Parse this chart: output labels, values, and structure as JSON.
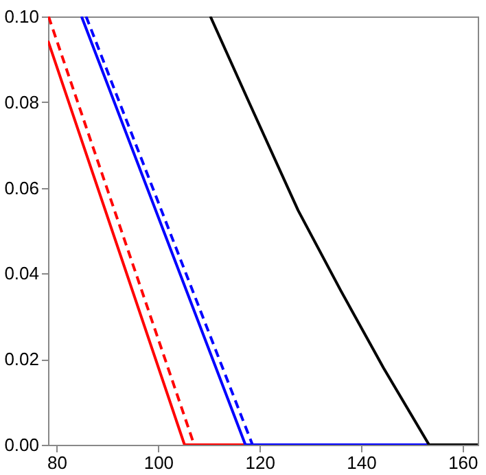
{
  "chart_data": {
    "type": "line",
    "xlim": [
      78.3,
      163
    ],
    "ylim": [
      0,
      0.1
    ],
    "xticks": [
      80,
      100,
      120,
      140,
      160
    ],
    "yticks": [
      {
        "value": 0,
        "label": "0.00"
      },
      {
        "value": 0.02,
        "label": "0.02"
      },
      {
        "value": 0.04,
        "label": "0.04"
      },
      {
        "value": 0.06,
        "label": "0.06"
      },
      {
        "value": 0.08,
        "label": "0.08"
      },
      {
        "value": 0.1,
        "label": "0.10"
      }
    ],
    "grid": false,
    "marker": "none",
    "series": [
      {
        "color": "#ff0000",
        "line_style": "solid",
        "x": [
          78.3,
          105.2,
          117.2
        ],
        "values": [
          0.0943,
          0,
          0
        ]
      },
      {
        "color": "#ff0000",
        "line_style": "dashed",
        "x": [
          78.4,
          107.1
        ],
        "values": [
          0.1,
          0
        ]
      },
      {
        "color": "#0000ff",
        "line_style": "solid",
        "x": [
          84.9,
          117.2,
          153.4
        ],
        "values": [
          0.1,
          0,
          0
        ]
      },
      {
        "color": "#0000ff",
        "line_style": "dashed",
        "x": [
          85.8,
          118.6
        ],
        "values": [
          0.1,
          0
        ]
      },
      {
        "color": "#000000",
        "line_style": "solid",
        "x": [
          110.3,
          117.9,
          127.6,
          136,
          144.4,
          153.4,
          163
        ],
        "values": [
          0.1,
          0.08,
          0.0547,
          0.036,
          0.018,
          0,
          0
        ]
      }
    ]
  }
}
